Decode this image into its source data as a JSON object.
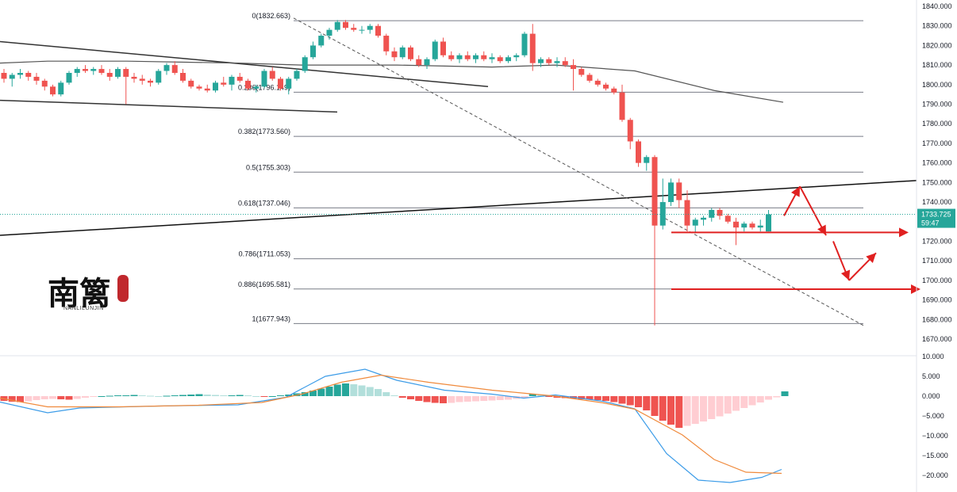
{
  "chart_data": [
    {
      "type": "candlestick",
      "panel": "price",
      "y_axis": {
        "range": [
          1665,
          1842
        ],
        "ticks": [
          "1840.000",
          "1830.000",
          "1820.000",
          "1810.000",
          "1800.000",
          "1790.000",
          "1780.000",
          "1770.000",
          "1760.000",
          "1750.000",
          "1740.000",
          "1730.000",
          "1720.000",
          "1710.000",
          "1700.000",
          "1690.000",
          "1680.000",
          "1670.000"
        ],
        "tick_values": [
          1840,
          1830,
          1820,
          1810,
          1800,
          1790,
          1780,
          1770,
          1760,
          1750,
          1740,
          1730,
          1720,
          1710,
          1700,
          1690,
          1680,
          1670
        ],
        "position": "right"
      },
      "current_price": {
        "value": "1733.725",
        "countdown": "59:47",
        "price": 1733.725
      },
      "fibonacci": [
        {
          "label": "0(1832.663)",
          "price": 1832.663
        },
        {
          "label": "0.236(1796.149)",
          "price": 1796.149
        },
        {
          "label": "0.382(1773.560)",
          "price": 1773.56
        },
        {
          "label": "0.5(1755.303)",
          "price": 1755.303
        },
        {
          "label": "0.618(1737.046)",
          "price": 1737.046
        },
        {
          "label": "0.786(1711.053)",
          "price": 1711.053
        },
        {
          "label": "0.886(1695.581)",
          "price": 1695.581
        },
        {
          "label": "1(1677.943)",
          "price": 1677.943
        }
      ],
      "candles": [
        [
          1806,
          1808,
          1801,
          1803
        ],
        [
          1803,
          1806,
          1799,
          1805
        ],
        [
          1805,
          1808,
          1803,
          1806
        ],
        [
          1806,
          1807,
          1802,
          1804
        ],
        [
          1804,
          1806,
          1800,
          1802
        ],
        [
          1802,
          1803,
          1797,
          1799
        ],
        [
          1799,
          1800,
          1794,
          1795
        ],
        [
          1795,
          1802,
          1794,
          1801
        ],
        [
          1801,
          1807,
          1800,
          1806
        ],
        [
          1806,
          1809,
          1804,
          1808
        ],
        [
          1808,
          1810,
          1806,
          1807
        ],
        [
          1807,
          1809,
          1805,
          1808
        ],
        [
          1808,
          1810,
          1805,
          1806
        ],
        [
          1806,
          1808,
          1802,
          1804
        ],
        [
          1804,
          1809,
          1803,
          1808
        ],
        [
          1808,
          1809,
          1790,
          1804
        ],
        [
          1804,
          1806,
          1801,
          1803
        ],
        [
          1803,
          1805,
          1800,
          1802
        ],
        [
          1802,
          1803,
          1799,
          1801
        ],
        [
          1801,
          1808,
          1800,
          1807
        ],
        [
          1807,
          1811,
          1805,
          1810
        ],
        [
          1810,
          1812,
          1805,
          1806
        ],
        [
          1806,
          1808,
          1801,
          1802
        ],
        [
          1802,
          1803,
          1798,
          1799
        ],
        [
          1799,
          1800,
          1797,
          1798
        ],
        [
          1798,
          1800,
          1796,
          1797
        ],
        [
          1797,
          1802,
          1796,
          1801
        ],
        [
          1801,
          1804,
          1799,
          1800
        ],
        [
          1800,
          1805,
          1797,
          1804
        ],
        [
          1804,
          1806,
          1801,
          1802
        ],
        [
          1802,
          1803,
          1797,
          1798
        ],
        [
          1798,
          1800,
          1796,
          1799
        ],
        [
          1799,
          1808,
          1798,
          1807
        ],
        [
          1807,
          1809,
          1802,
          1803
        ],
        [
          1803,
          1804,
          1797,
          1798
        ],
        [
          1798,
          1804,
          1795,
          1803
        ],
        [
          1803,
          1808,
          1802,
          1807
        ],
        [
          1807,
          1815,
          1806,
          1814
        ],
        [
          1814,
          1822,
          1813,
          1820
        ],
        [
          1820,
          1826,
          1819,
          1825
        ],
        [
          1825,
          1829,
          1823,
          1828
        ],
        [
          1828,
          1833,
          1827,
          1832
        ],
        [
          1832,
          1833,
          1828,
          1829
        ],
        [
          1829,
          1831,
          1827,
          1828
        ],
        [
          1828,
          1830,
          1826,
          1828
        ],
        [
          1828,
          1831,
          1826,
          1830
        ],
        [
          1830,
          1831,
          1824,
          1825
        ],
        [
          1825,
          1826,
          1815,
          1817
        ],
        [
          1817,
          1819,
          1812,
          1814
        ],
        [
          1814,
          1820,
          1813,
          1819
        ],
        [
          1819,
          1820,
          1812,
          1813
        ],
        [
          1813,
          1815,
          1809,
          1810
        ],
        [
          1810,
          1814,
          1808,
          1813
        ],
        [
          1813,
          1823,
          1812,
          1822
        ],
        [
          1822,
          1824,
          1814,
          1815
        ],
        [
          1815,
          1817,
          1812,
          1813
        ],
        [
          1813,
          1816,
          1811,
          1815
        ],
        [
          1815,
          1817,
          1812,
          1813
        ],
        [
          1813,
          1816,
          1811,
          1815
        ],
        [
          1815,
          1817,
          1812,
          1813
        ],
        [
          1813,
          1816,
          1811,
          1814
        ],
        [
          1814,
          1815,
          1811,
          1812
        ],
        [
          1812,
          1815,
          1811,
          1814
        ],
        [
          1814,
          1816,
          1812,
          1815
        ],
        [
          1815,
          1827,
          1814,
          1826
        ],
        [
          1826,
          1831,
          1807,
          1811
        ],
        [
          1811,
          1814,
          1809,
          1813
        ],
        [
          1813,
          1814,
          1810,
          1811
        ],
        [
          1811,
          1814,
          1809,
          1812
        ],
        [
          1812,
          1814,
          1809,
          1810
        ],
        [
          1810,
          1813,
          1797,
          1808
        ],
        [
          1808,
          1809,
          1804,
          1805
        ],
        [
          1805,
          1806,
          1801,
          1802
        ],
        [
          1802,
          1803,
          1799,
          1800
        ],
        [
          1800,
          1801,
          1797,
          1798
        ],
        [
          1798,
          1799,
          1795,
          1796
        ],
        [
          1796,
          1800,
          1781,
          1782
        ],
        [
          1782,
          1783,
          1767,
          1771
        ],
        [
          1771,
          1772,
          1758,
          1760
        ],
        [
          1760,
          1764,
          1756,
          1763
        ],
        [
          1763,
          1764,
          1677,
          1728
        ],
        [
          1728,
          1752,
          1726,
          1740
        ],
        [
          1740,
          1752,
          1738,
          1750
        ],
        [
          1750,
          1752,
          1737,
          1741
        ],
        [
          1741,
          1746,
          1725,
          1728
        ],
        [
          1728,
          1732,
          1724,
          1731
        ],
        [
          1731,
          1733,
          1728,
          1732
        ],
        [
          1732,
          1737,
          1730,
          1736
        ],
        [
          1736,
          1737,
          1731,
          1733
        ],
        [
          1733,
          1734,
          1729,
          1730
        ],
        [
          1730,
          1732,
          1718,
          1727
        ],
        [
          1727,
          1730,
          1725,
          1729
        ],
        [
          1729,
          1730,
          1726,
          1727
        ],
        [
          1727,
          1731,
          1725,
          1728
        ],
        [
          1725,
          1736,
          1725,
          1733.725
        ]
      ],
      "moving_averages": [
        {
          "name": "",
          "color": "#555555",
          "values": [
            [
              0,
              1811
            ],
            [
              60,
              1812
            ],
            [
              160,
              1812
            ],
            [
              300,
              1811
            ],
            [
              380,
              1810
            ],
            [
              500,
              1810
            ],
            [
              620,
              1809
            ],
            [
              700,
              1810
            ],
            [
              800,
              1807
            ],
            [
              900,
              1797
            ],
            [
              987,
              1791
            ]
          ]
        }
      ],
      "trendlines": [
        {
          "color": "#333333",
          "style": "solid",
          "points": [
            [
              0,
              1822
            ],
            [
              615,
              1799
            ]
          ]
        },
        {
          "color": "#333333",
          "style": "solid",
          "points": [
            [
              0,
              1792
            ],
            [
              425,
              1786
            ]
          ]
        },
        {
          "color": "#111111",
          "style": "solid",
          "points": [
            [
              0,
              1723
            ],
            [
              1155,
              1751
            ]
          ]
        },
        {
          "color": "#555555",
          "style": "dashed",
          "points": [
            [
              370,
              1834
            ],
            [
              1088,
              1677
            ]
          ]
        }
      ],
      "support_lines": [
        {
          "color": "#e02020",
          "price": 1724.5,
          "x_start": 846,
          "x_end": 1145
        },
        {
          "color": "#e02020",
          "price": 1695.5,
          "x_start": 846,
          "x_end": 1160
        }
      ],
      "projection_arrows": [
        {
          "color": "#e02020",
          "points": [
            [
              988,
              1733
            ],
            [
              1008,
              1748
            ],
            [
              1041,
              1723
            ]
          ]
        },
        {
          "color": "#e02020",
          "points": [
            [
              1050,
              1720
            ],
            [
              1070,
              1700
            ],
            [
              1104,
              1714
            ]
          ]
        }
      ]
    },
    {
      "type": "macd",
      "panel": "oscillator",
      "y_axis": {
        "range": [
          -24,
          12
        ],
        "ticks": [
          "10.000",
          "5.000",
          "0.000",
          "−5.000",
          "−10.000",
          "−15.000",
          "−20.000"
        ],
        "tick_values": [
          10,
          5,
          0,
          -5,
          -10,
          -15,
          -20
        ],
        "position": "right"
      },
      "histogram": [
        -1.2,
        -1.4,
        -1.5,
        -1.3,
        -1.0,
        -0.8,
        -0.7,
        -0.8,
        -0.9,
        -0.7,
        -0.4,
        -0.2,
        0.0,
        0.1,
        0.2,
        0.2,
        0.3,
        0.2,
        0.1,
        0.0,
        0.1,
        0.2,
        0.3,
        0.4,
        0.5,
        0.4,
        0.3,
        0.2,
        0.2,
        0.3,
        0.2,
        0.0,
        -0.1,
        0.0,
        0.2,
        0.4,
        0.7,
        1.0,
        1.4,
        1.9,
        2.4,
        2.9,
        3.2,
        3.0,
        2.7,
        2.3,
        1.8,
        1.0,
        0.2,
        -0.4,
        -0.8,
        -1.2,
        -1.5,
        -1.7,
        -1.8,
        -1.7,
        -1.5,
        -1.4,
        -1.3,
        -1.2,
        -1.1,
        -1.0,
        -0.9,
        -0.7,
        -0.4,
        0.6,
        0.3,
        -0.2,
        -0.4,
        -0.5,
        -0.6,
        -0.8,
        -0.9,
        -1.0,
        -1.2,
        -1.5,
        -1.9,
        -2.3,
        -2.8,
        -3.6,
        -5.0,
        -6.2,
        -7.2,
        -8.0,
        -7.5,
        -7.0,
        -6.4,
        -5.8,
        -5.1,
        -4.4,
        -3.7,
        -3.0,
        -2.3,
        -1.6,
        -0.9,
        -0.3,
        1.2
      ],
      "macd_line": {
        "color": "#3c9ce8",
        "values": [
          [
            0,
            -1.5
          ],
          [
            60,
            -4.2
          ],
          [
            100,
            -3.0
          ],
          [
            200,
            -2.5
          ],
          [
            300,
            -2.2
          ],
          [
            360,
            -0.3
          ],
          [
            410,
            5.0
          ],
          [
            460,
            6.8
          ],
          [
            500,
            4.0
          ],
          [
            560,
            1.5
          ],
          [
            620,
            0.5
          ],
          [
            660,
            -0.5
          ],
          [
            700,
            0.3
          ],
          [
            760,
            -1.3
          ],
          [
            800,
            -3.2
          ],
          [
            840,
            -14.5
          ],
          [
            880,
            -21.2
          ],
          [
            920,
            -21.8
          ],
          [
            960,
            -20.5
          ],
          [
            985,
            -18.5
          ]
        ]
      },
      "signal_line": {
        "color": "#f08a3c",
        "values": [
          [
            0,
            -0.5
          ],
          [
            60,
            -2.7
          ],
          [
            150,
            -2.7
          ],
          [
            250,
            -2.3
          ],
          [
            330,
            -1.6
          ],
          [
            380,
            0.5
          ],
          [
            430,
            3.5
          ],
          [
            480,
            5.3
          ],
          [
            540,
            3.5
          ],
          [
            620,
            1.5
          ],
          [
            700,
            0.0
          ],
          [
            760,
            -1.7
          ],
          [
            800,
            -3.3
          ],
          [
            860,
            -9.8
          ],
          [
            900,
            -16.0
          ],
          [
            940,
            -19.2
          ],
          [
            985,
            -19.5
          ]
        ]
      },
      "positive_colors": [
        "#26a69a",
        "#b2dfdb"
      ],
      "negative_colors": [
        "#ef5350",
        "#ffcdd2"
      ]
    }
  ],
  "logo": {
    "text": "南篱",
    "subtitle": "NANLILUNJIN",
    "seal_color": "#c0282d"
  },
  "colors": {
    "bull": "#26a69a",
    "bear": "#ef5350",
    "fib_line": "#787b86",
    "price_tag": "#26a69a",
    "annotation": "#e02020"
  }
}
